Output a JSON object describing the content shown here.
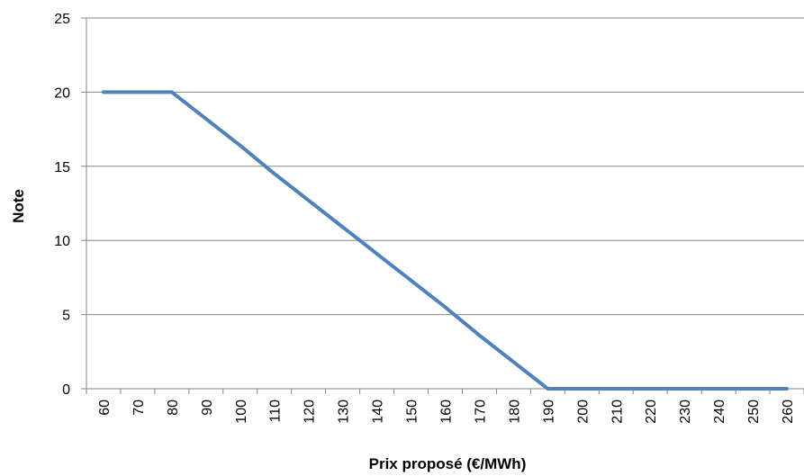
{
  "chart_data": {
    "type": "line",
    "title": "",
    "xlabel": "Prix proposé (€/MWh)",
    "ylabel": "Note",
    "categories": [
      "60",
      "70",
      "80",
      "90",
      "100",
      "110",
      "120",
      "130",
      "140",
      "150",
      "160",
      "170",
      "180",
      "190",
      "200",
      "210",
      "220",
      "230",
      "240",
      "250",
      "260"
    ],
    "series": [
      {
        "values": [
          20,
          20,
          20,
          18.2,
          16.4,
          14.5,
          12.7,
          10.9,
          9.1,
          7.3,
          5.5,
          3.6,
          1.8,
          0,
          0,
          0,
          0,
          0,
          0,
          0,
          0
        ]
      }
    ],
    "ylim": [
      0,
      25
    ],
    "yticks": [
      "0",
      "5",
      "10",
      "15",
      "20",
      "25"
    ],
    "grid": true,
    "colors": {
      "line": "#4f81bd",
      "grid": "#868686",
      "axis": "#868686"
    }
  }
}
